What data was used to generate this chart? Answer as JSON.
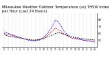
{
  "title": "Milwaukee Weather Outdoor Temperature (vs) THSW Index per Hour (Last 24 Hours)",
  "title_fontsize": 3.8,
  "background_color": "#ffffff",
  "grid_color": "#888888",
  "hours": [
    0,
    1,
    2,
    3,
    4,
    5,
    6,
    7,
    8,
    9,
    10,
    11,
    12,
    13,
    14,
    15,
    16,
    17,
    18,
    19,
    20,
    21,
    22,
    23
  ],
  "temp": [
    58,
    56,
    55,
    54,
    53,
    52,
    51,
    50,
    50,
    51,
    52,
    55,
    57,
    60,
    61,
    59,
    57,
    55,
    54,
    53,
    52,
    51,
    51,
    50
  ],
  "thsw": [
    62,
    60,
    58,
    56,
    54,
    52,
    50,
    49,
    49,
    50,
    54,
    60,
    68,
    80,
    75,
    65,
    58,
    55,
    53,
    52,
    50,
    49,
    48,
    47
  ],
  "feels": [
    60,
    58,
    57,
    55,
    54,
    52,
    51,
    50,
    50,
    51,
    53,
    57,
    62,
    68,
    65,
    60,
    56,
    53,
    52,
    51,
    50,
    49,
    49,
    48
  ],
  "temp_color": "#000000",
  "thsw_color": "#0000ff",
  "feels_color": "#cc0000",
  "ylim_min": 40,
  "ylim_max": 90,
  "yticks": [
    50,
    60,
    70,
    80
  ],
  "ytick_labels": [
    "50",
    "60",
    "70",
    "80"
  ],
  "figwidth": 1.6,
  "figheight": 0.87,
  "dpi": 100
}
